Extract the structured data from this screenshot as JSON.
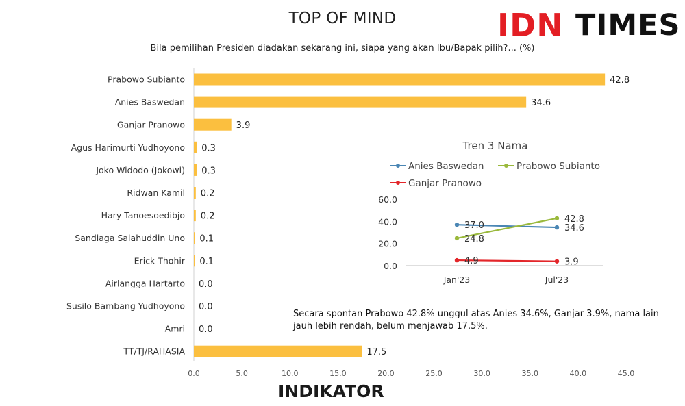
{
  "logos": {
    "idn": "IDN",
    "times": "TIMES",
    "indikator": "INDIKATOR"
  },
  "colors": {
    "bar": "#fbbf3f",
    "anies": "#4a86b4",
    "prabowo": "#9ab93c",
    "ganjar": "#e3262a",
    "idn_red": "#e31e24"
  },
  "annotation": "Secara spontan Prabowo 42.8% unggul atas Anies 34.6%, Ganjar 3.9%, nama lain jauh lebih rendah, belum menjawab 17.5%.",
  "chart_data": [
    {
      "type": "bar",
      "orientation": "horizontal",
      "title": "TOP OF MIND",
      "subtitle": "Bila pemilihan Presiden diadakan sekarang ini, siapa yang akan Ibu/Bapak pilih?... (%)",
      "categories": [
        "Prabowo Subianto",
        "Anies Baswedan",
        "Ganjar Pranowo",
        "Agus Harimurti Yudhoyono",
        "Joko Widodo (Jokowi)",
        "Ridwan Kamil",
        "Hary Tanoesoedibjo",
        "Sandiaga Salahuddin Uno",
        "Erick Thohir",
        "Airlangga Hartarto",
        "Susilo Bambang Yudhoyono",
        "Amri",
        "TT/TJ/RAHASIA"
      ],
      "values": [
        42.8,
        34.6,
        3.9,
        0.3,
        0.3,
        0.2,
        0.2,
        0.1,
        0.1,
        0.0,
        0.0,
        0.0,
        17.5
      ],
      "value_labels": [
        "42.8",
        "34.6",
        "3.9",
        "0.3",
        "0.3",
        "0.2",
        "0.2",
        "0.1",
        "0.1",
        "0.0",
        "0.0",
        "0.0",
        "17.5"
      ],
      "xlim": [
        0,
        45
      ],
      "xticks": [
        "0.0",
        "5.0",
        "10.0",
        "15.0",
        "20.0",
        "25.0",
        "30.0",
        "35.0",
        "40.0",
        "45.0"
      ],
      "grid": false
    },
    {
      "type": "line",
      "title": "Tren 3 Nama",
      "x": [
        "Jan'23",
        "Jul'23"
      ],
      "series": [
        {
          "name": "Anies Baswedan",
          "values": [
            37.0,
            34.6
          ],
          "labels": [
            "37.0",
            "34.6"
          ]
        },
        {
          "name": "Prabowo Subianto",
          "values": [
            24.8,
            42.8
          ],
          "labels": [
            "24.8",
            "42.8"
          ]
        },
        {
          "name": "Ganjar Pranowo",
          "values": [
            4.9,
            3.9
          ],
          "labels": [
            "4.9",
            "3.9"
          ]
        }
      ],
      "ylim": [
        0,
        60
      ],
      "yticks": [
        "0.0",
        "20.0",
        "40.0",
        "60.0"
      ],
      "legend": "top"
    }
  ]
}
